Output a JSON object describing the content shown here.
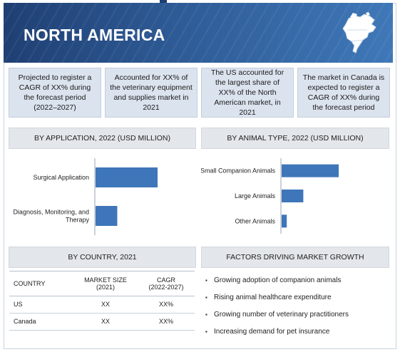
{
  "banner": {
    "title": "NORTH AMERICA",
    "map_icon": "north-america-map-icon"
  },
  "stats": [
    "Projected to register a CAGR of XX% during the forecast period (2022–2027)",
    "Accounted for XX% of the veterinary equipment and supplies market in 2021",
    "The US accounted for the largest share of XX% of the North American market, in 2021",
    "The market in Canada is expected to register a CAGR of XX% during the forecast period"
  ],
  "sections": {
    "application": "BY APPLICATION, 2022 (USD MILLION)",
    "animal": "BY ANIMAL TYPE, 2022 (USD MILLION)",
    "country": "BY COUNTRY, 2021",
    "factors": "FACTORS DRIVING MARKET GROWTH"
  },
  "chart_data": [
    {
      "type": "bar",
      "orientation": "horizontal",
      "title": "BY APPLICATION, 2022 (USD MILLION)",
      "categories": [
        "Surgical Application",
        "Diagnosis, Monitoring, and Therapy"
      ],
      "values": [
        100,
        35
      ],
      "xlim": [
        0,
        100
      ],
      "color": "#3f76b9",
      "grid": false
    },
    {
      "type": "bar",
      "orientation": "horizontal",
      "title": "BY ANIMAL TYPE, 2022 (USD MILLION)",
      "categories": [
        "Small Companion Animals",
        "Large Animals",
        "Other Animals"
      ],
      "values": [
        100,
        38,
        9
      ],
      "xlim": [
        0,
        100
      ],
      "color": "#3f76b9",
      "grid": false
    }
  ],
  "country_table": {
    "headers": [
      "COUNTRY",
      "MARKET SIZE\n(2021)",
      "CAGR\n(2022-2027)"
    ],
    "rows": [
      [
        "US",
        "XX",
        "XX%"
      ],
      [
        "Canada",
        "XX",
        "XX%"
      ]
    ]
  },
  "factors": [
    "Growing adoption of companion animals",
    "Rising animal healthcare expenditure",
    "Growing number of veterinary practitioners",
    "Increasing demand for pet insurance"
  ],
  "colors": {
    "banner_dark": "#1f3f73",
    "banner_light": "#3f78b8",
    "bar": "#3f76b9",
    "stat_bg": "#dbe3ee",
    "section_bg": "#e3e6ea"
  }
}
